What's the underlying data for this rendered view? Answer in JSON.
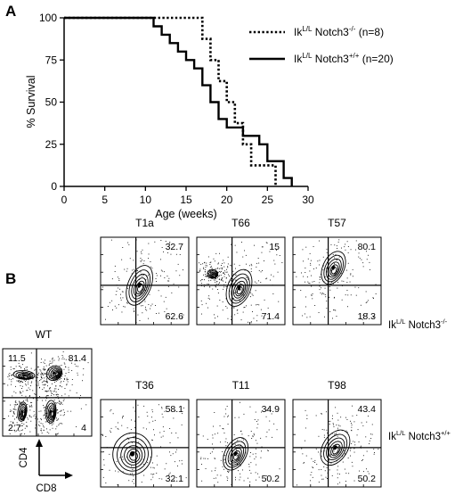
{
  "panel_a": {
    "letter": "A",
    "legend": [
      {
        "main": "Ik",
        "sup1": "L/L",
        "mid": " Notch3",
        "sup2": "-/-",
        "tail": " (n=8)"
      },
      {
        "main": "Ik",
        "sup1": "L/L",
        "mid": " Notch3",
        "sup2": "+/+",
        "tail": " (n=20)"
      }
    ]
  },
  "chart_data": [
    {
      "type": "line",
      "subtype": "kaplan-meier-step",
      "xlabel": "Age (weeks)",
      "ylabel": "% Survival",
      "xlim": [
        0,
        30
      ],
      "ylim": [
        0,
        100
      ],
      "x_ticks": [
        0,
        5,
        10,
        15,
        20,
        25,
        30
      ],
      "y_ticks": [
        0,
        25,
        50,
        75,
        100
      ],
      "series": [
        {
          "name": "IkL/L Notch3-/- (n=8)",
          "style": "dotted",
          "x": [
            0,
            17,
            17,
            18,
            18,
            19,
            19,
            20,
            20,
            21,
            21,
            22,
            22,
            23,
            23,
            26,
            26
          ],
          "y": [
            100,
            100,
            87.5,
            87.5,
            75,
            75,
            62.5,
            62.5,
            50,
            50,
            37.5,
            37.5,
            25,
            25,
            12.5,
            12.5,
            0
          ]
        },
        {
          "name": "IkL/L Notch3+/+ (n=20)",
          "style": "solid",
          "x": [
            0,
            11,
            11,
            12,
            12,
            13,
            13,
            14,
            14,
            15,
            15,
            16,
            16,
            17,
            17,
            18,
            18,
            19,
            19,
            20,
            20,
            22,
            22,
            24,
            24,
            25,
            25,
            27,
            27,
            28,
            28
          ],
          "y": [
            100,
            100,
            95,
            95,
            90,
            90,
            85,
            85,
            80,
            80,
            75,
            75,
            70,
            70,
            60,
            60,
            50,
            50,
            40,
            40,
            35,
            35,
            30,
            30,
            25,
            25,
            15,
            15,
            5,
            5,
            0
          ]
        }
      ]
    },
    {
      "type": "scatter",
      "subtype": "flow-cytometry-contour",
      "xlabel": "CD8",
      "ylabel": "CD4",
      "plots": [
        {
          "name": "WT",
          "quadrants": {
            "ul": "11.5",
            "ur": "81.4",
            "ll": "2.7",
            "lr": "4"
          }
        },
        {
          "name": "T1a",
          "quadrants": {
            "ur": "32.7",
            "lr": "62.6"
          }
        },
        {
          "name": "T66",
          "quadrants": {
            "ur": "15",
            "lr": "71.4"
          }
        },
        {
          "name": "T57",
          "quadrants": {
            "ur": "80.1",
            "lr": "18.3"
          }
        },
        {
          "name": "T36",
          "quadrants": {
            "ur": "58.1",
            "lr": "32.1"
          }
        },
        {
          "name": "T11",
          "quadrants": {
            "ur": "34.9",
            "lr": "50.2"
          }
        },
        {
          "name": "T98",
          "quadrants": {
            "ur": "43.4",
            "lr": "50.2"
          }
        }
      ]
    }
  ],
  "panel_b": {
    "letter": "B",
    "row_labels": [
      {
        "main": "Ik",
        "sup1": "L/L",
        "mid": " Notch3",
        "sup2": "-/-"
      },
      {
        "main": "Ik",
        "sup1": "L/L",
        "mid": " Notch3",
        "sup2": "+/+"
      }
    ],
    "axis_arrows": {
      "vertical": "CD4",
      "horizontal": "CD8"
    }
  }
}
